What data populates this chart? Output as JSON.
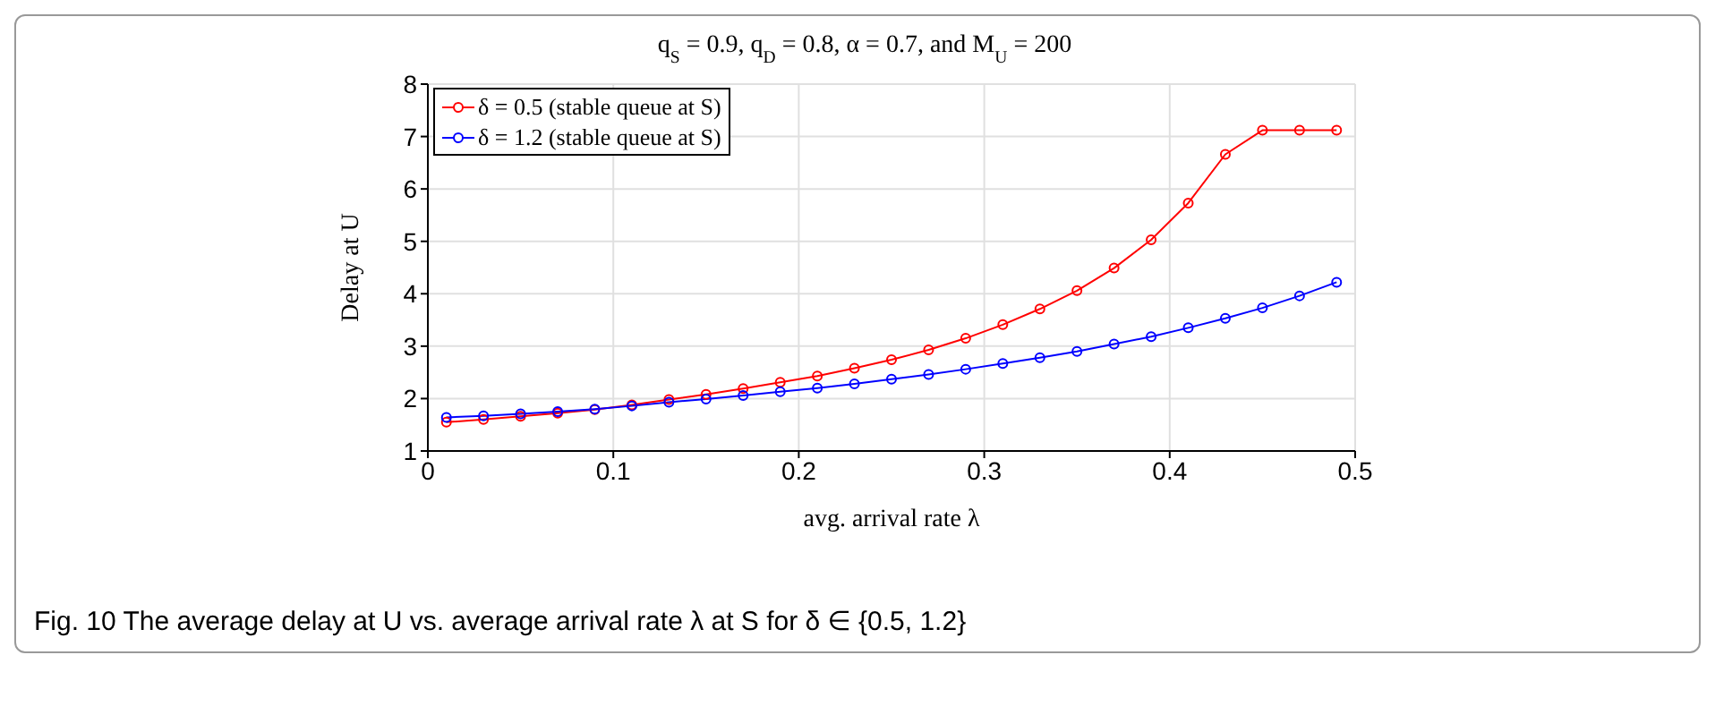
{
  "chart_data": {
    "type": "line",
    "title": "q$_{S}$ = 0.9, q$_{D}$ = 0.8, α = 0.7, and M$_{U}$ = 200",
    "xlabel": "avg. arrival rate λ",
    "ylabel": "Delay at U",
    "annotations": [
      "Fig. 10 The average delay at U vs. average arrival rate λ at S for δ ∈ {0.5, 1.2}"
    ],
    "x": [
      0.01,
      0.03,
      0.05,
      0.07,
      0.09,
      0.11,
      0.13,
      0.15,
      0.17,
      0.19,
      0.21,
      0.23,
      0.25,
      0.27,
      0.29,
      0.31,
      0.33,
      0.35,
      0.37,
      0.39,
      0.41,
      0.43,
      0.45,
      0.47,
      0.49
    ],
    "series": [
      {
        "name": "δ = 0.5 (stable queue at S)",
        "color": "#ff0000",
        "values": [
          1.55,
          1.6,
          1.66,
          1.72,
          1.79,
          1.88,
          1.98,
          2.08,
          2.19,
          2.31,
          2.43,
          2.58,
          2.74,
          2.93,
          3.15,
          3.41,
          3.71,
          4.06,
          4.49,
          5.03,
          5.73,
          6.66,
          7.12,
          7.12,
          7.12
        ]
      },
      {
        "name": "δ = 1.2 (stable queue at S)",
        "color": "#0000ff",
        "values": [
          1.64,
          1.67,
          1.71,
          1.75,
          1.8,
          1.86,
          1.93,
          1.99,
          2.06,
          2.13,
          2.2,
          2.28,
          2.37,
          2.46,
          2.56,
          2.67,
          2.78,
          2.9,
          3.04,
          3.18,
          3.35,
          3.53,
          3.73,
          3.96,
          4.22
        ]
      }
    ],
    "xlim": [
      0,
      0.5
    ],
    "xticks": [
      0,
      0.1,
      0.2,
      0.3,
      0.4,
      0.5
    ],
    "ylim": [
      1,
      8
    ],
    "yticks": [
      1,
      2,
      3,
      4,
      5,
      6,
      7,
      8
    ],
    "grid": true,
    "legend": "top left",
    "marker": "circle",
    "line_style": "solid"
  }
}
